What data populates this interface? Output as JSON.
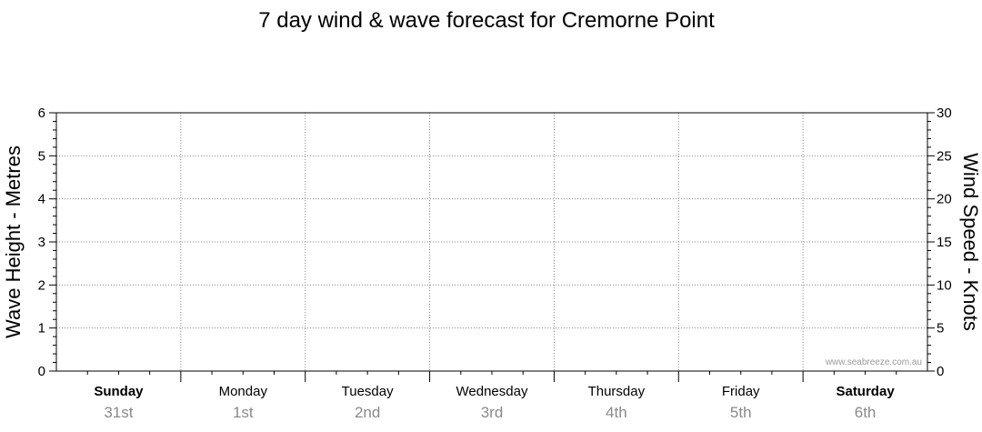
{
  "chart_data": {
    "type": "line",
    "title": "7 day wind & wave forecast for Cremorne Point",
    "ylabel_left": "Wave Height - Metres",
    "ylabel_right": "Wind Speed - Knots",
    "ylim_left": [
      0,
      6
    ],
    "ylim_right": [
      0,
      30
    ],
    "left_ticks": [
      "0",
      "1",
      "2",
      "3",
      "4",
      "5",
      "6"
    ],
    "right_ticks": [
      "0",
      "5",
      "10",
      "15",
      "20",
      "25",
      "30"
    ],
    "grid": true,
    "days": [
      {
        "name": "Sunday",
        "date": "31st",
        "bold": true
      },
      {
        "name": "Monday",
        "date": "1st",
        "bold": false
      },
      {
        "name": "Tuesday",
        "date": "2nd",
        "bold": false
      },
      {
        "name": "Wednesday",
        "date": "3rd",
        "bold": false
      },
      {
        "name": "Thursday",
        "date": "4th",
        "bold": false
      },
      {
        "name": "Friday",
        "date": "5th",
        "bold": false
      },
      {
        "name": "Saturday",
        "date": "6th",
        "bold": true
      }
    ],
    "series": [],
    "watermark": "www.seabreeze.com.au"
  }
}
